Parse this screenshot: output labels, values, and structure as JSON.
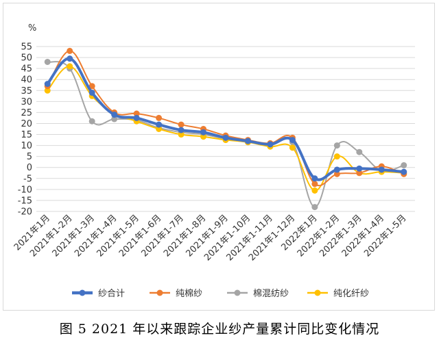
{
  "caption": "图 5   2021 年以来跟踪企业纱产量累计同比变化情况",
  "chart_data": {
    "type": "line",
    "ylabel": "%",
    "ylim": [
      -20,
      55
    ],
    "yticks": [
      55,
      50,
      45,
      40,
      35,
      30,
      25,
      20,
      15,
      10,
      5,
      0,
      -5,
      -10,
      -15,
      -20
    ],
    "grid": true,
    "legend_position": "bottom",
    "categories": [
      "2021年1月",
      "2021年1-2月",
      "2021年1-3月",
      "2021年1-4月",
      "2021年1-5月",
      "2021年1-6月",
      "2021年1-7月",
      "2021年1-8月",
      "2021年1-9月",
      "2021年1-10月",
      "2021年1-11月",
      "2021年1-12月",
      "2022年1月",
      "2022年1-2月",
      "2022年1-3月",
      "2022年1-4月",
      "2022年1-5月"
    ],
    "series": [
      {
        "name": "纱合计",
        "color": "#4472C4",
        "width": 4,
        "values": [
          38,
          49.5,
          34,
          24,
          22.5,
          19.5,
          17,
          16,
          13.5,
          12,
          10.5,
          12.5,
          -5,
          -1,
          -0.5,
          -1,
          -2
        ]
      },
      {
        "name": "纯棉纱",
        "color": "#ED7D31",
        "width": 2,
        "values": [
          37,
          53,
          37,
          25,
          24.5,
          22.5,
          19.5,
          17.5,
          14.5,
          12.5,
          11,
          13.5,
          -7.5,
          -3,
          -2.5,
          0.5,
          -3
        ]
      },
      {
        "name": "棉混纺纱",
        "color": "#A5A5A5",
        "width": 2,
        "values": [
          48,
          45,
          21,
          22,
          21.5,
          18,
          16,
          15,
          13,
          11.5,
          11,
          11.5,
          -18,
          10,
          7,
          -1.5,
          1
        ]
      },
      {
        "name": "纯化纤纱",
        "color": "#FFC000",
        "width": 2,
        "values": [
          35,
          46,
          32.5,
          24.5,
          21,
          17.5,
          15,
          14,
          12.5,
          11.5,
          9.5,
          9,
          -10.5,
          5,
          -2.5,
          -2,
          -2.5
        ]
      }
    ]
  }
}
